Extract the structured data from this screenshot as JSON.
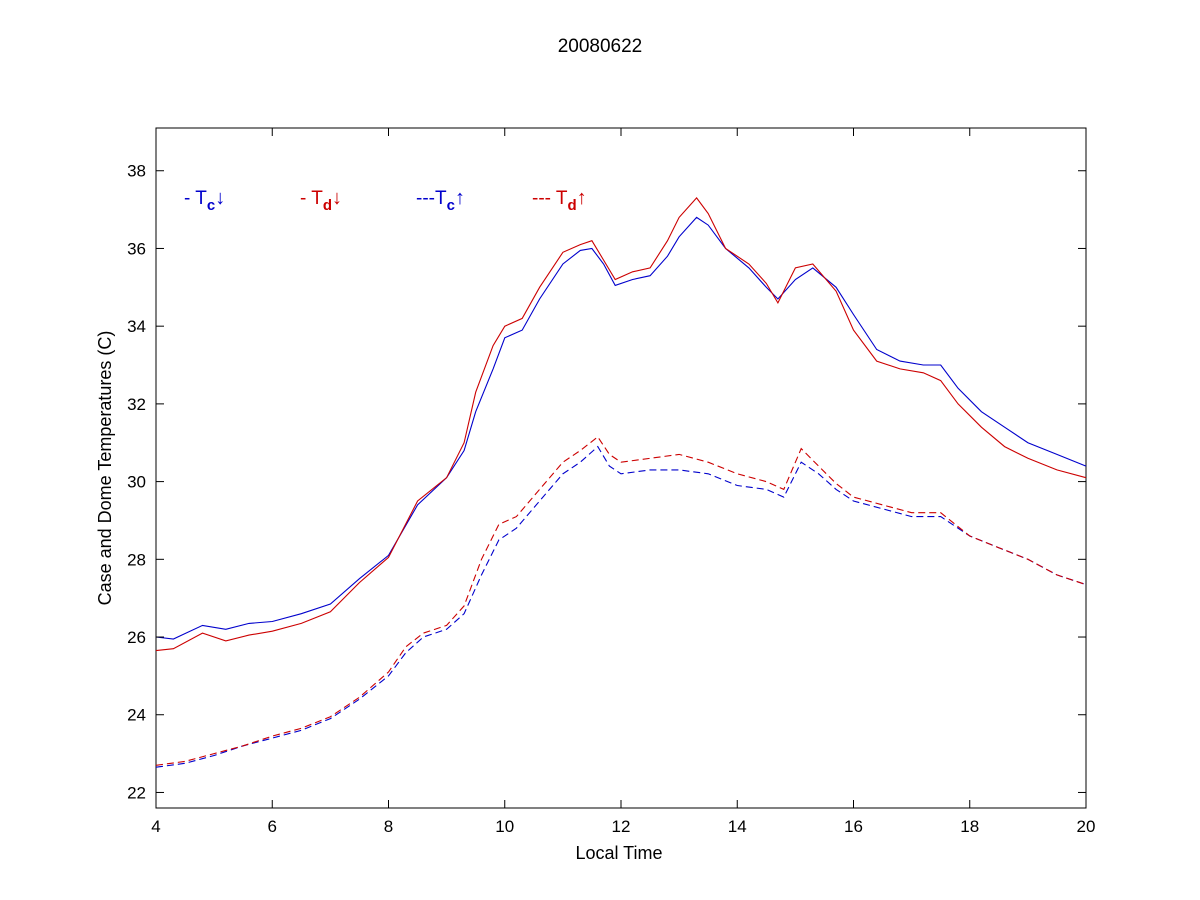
{
  "chart_data": {
    "type": "line",
    "title": "20080622",
    "xlabel": "Local Time",
    "ylabel": "Case and Dome Temperatures (C)",
    "xlim": [
      4,
      20
    ],
    "ylim": [
      21.6,
      39.1
    ],
    "xticks": [
      4,
      6,
      8,
      10,
      12,
      14,
      16,
      18,
      20
    ],
    "yticks": [
      22,
      24,
      26,
      28,
      30,
      32,
      34,
      36,
      38
    ],
    "grid": false,
    "legend": [
      {
        "prefix": "- T",
        "sub": "c",
        "arrow": "↓",
        "color": "#0000cc"
      },
      {
        "prefix": "- T",
        "sub": "d",
        "arrow": "↓",
        "color": "#cc0000"
      },
      {
        "prefix": "---T",
        "sub": "c",
        "arrow": "↑",
        "color": "#0000cc"
      },
      {
        "prefix": "--- T",
        "sub": "d",
        "arrow": "↑",
        "color": "#cc0000"
      }
    ],
    "series": [
      {
        "color": "#0000cc",
        "style": "solid",
        "points": [
          [
            4.0,
            26.0
          ],
          [
            4.3,
            25.95
          ],
          [
            4.8,
            26.3
          ],
          [
            5.2,
            26.2
          ],
          [
            5.6,
            26.35
          ],
          [
            6.0,
            26.4
          ],
          [
            6.5,
            26.6
          ],
          [
            7.0,
            26.85
          ],
          [
            7.5,
            27.5
          ],
          [
            8.0,
            28.1
          ],
          [
            8.5,
            29.4
          ],
          [
            9.0,
            30.1
          ],
          [
            9.3,
            30.8
          ],
          [
            9.5,
            31.8
          ],
          [
            9.8,
            32.9
          ],
          [
            10.0,
            33.7
          ],
          [
            10.3,
            33.9
          ],
          [
            10.6,
            34.7
          ],
          [
            11.0,
            35.6
          ],
          [
            11.3,
            35.95
          ],
          [
            11.5,
            36.0
          ],
          [
            11.7,
            35.6
          ],
          [
            11.9,
            35.05
          ],
          [
            12.2,
            35.2
          ],
          [
            12.5,
            35.3
          ],
          [
            12.8,
            35.8
          ],
          [
            13.0,
            36.3
          ],
          [
            13.3,
            36.8
          ],
          [
            13.5,
            36.6
          ],
          [
            13.8,
            36.0
          ],
          [
            14.2,
            35.5
          ],
          [
            14.5,
            35.0
          ],
          [
            14.7,
            34.7
          ],
          [
            15.0,
            35.2
          ],
          [
            15.3,
            35.5
          ],
          [
            15.7,
            35.0
          ],
          [
            16.0,
            34.3
          ],
          [
            16.4,
            33.4
          ],
          [
            16.8,
            33.1
          ],
          [
            17.2,
            33.0
          ],
          [
            17.5,
            33.0
          ],
          [
            17.8,
            32.4
          ],
          [
            18.2,
            31.8
          ],
          [
            18.6,
            31.4
          ],
          [
            19.0,
            31.0
          ],
          [
            19.5,
            30.7
          ],
          [
            20.0,
            30.4
          ]
        ]
      },
      {
        "color": "#cc0000",
        "style": "solid",
        "points": [
          [
            4.0,
            25.65
          ],
          [
            4.3,
            25.7
          ],
          [
            4.8,
            26.1
          ],
          [
            5.2,
            25.9
          ],
          [
            5.6,
            26.05
          ],
          [
            6.0,
            26.15
          ],
          [
            6.5,
            26.35
          ],
          [
            7.0,
            26.65
          ],
          [
            7.5,
            27.4
          ],
          [
            8.0,
            28.05
          ],
          [
            8.5,
            29.5
          ],
          [
            9.0,
            30.1
          ],
          [
            9.3,
            31.0
          ],
          [
            9.5,
            32.3
          ],
          [
            9.8,
            33.5
          ],
          [
            10.0,
            34.0
          ],
          [
            10.3,
            34.2
          ],
          [
            10.6,
            35.0
          ],
          [
            11.0,
            35.9
          ],
          [
            11.3,
            36.1
          ],
          [
            11.5,
            36.2
          ],
          [
            11.7,
            35.7
          ],
          [
            11.9,
            35.2
          ],
          [
            12.2,
            35.4
          ],
          [
            12.5,
            35.5
          ],
          [
            12.8,
            36.2
          ],
          [
            13.0,
            36.8
          ],
          [
            13.3,
            37.3
          ],
          [
            13.5,
            36.9
          ],
          [
            13.8,
            36.0
          ],
          [
            14.2,
            35.6
          ],
          [
            14.5,
            35.1
          ],
          [
            14.7,
            34.6
          ],
          [
            15.0,
            35.5
          ],
          [
            15.3,
            35.6
          ],
          [
            15.7,
            34.9
          ],
          [
            16.0,
            33.9
          ],
          [
            16.4,
            33.1
          ],
          [
            16.8,
            32.9
          ],
          [
            17.2,
            32.8
          ],
          [
            17.5,
            32.6
          ],
          [
            17.8,
            32.0
          ],
          [
            18.2,
            31.4
          ],
          [
            18.6,
            30.9
          ],
          [
            19.0,
            30.6
          ],
          [
            19.5,
            30.3
          ],
          [
            20.0,
            30.1
          ]
        ]
      },
      {
        "color": "#0000cc",
        "style": "dashed",
        "points": [
          [
            4.0,
            22.65
          ],
          [
            4.5,
            22.75
          ],
          [
            5.0,
            22.95
          ],
          [
            5.5,
            23.2
          ],
          [
            6.0,
            23.4
          ],
          [
            6.5,
            23.6
          ],
          [
            7.0,
            23.9
          ],
          [
            7.5,
            24.4
          ],
          [
            8.0,
            25.0
          ],
          [
            8.3,
            25.6
          ],
          [
            8.6,
            26.0
          ],
          [
            9.0,
            26.2
          ],
          [
            9.3,
            26.6
          ],
          [
            9.6,
            27.6
          ],
          [
            9.9,
            28.5
          ],
          [
            10.2,
            28.8
          ],
          [
            10.6,
            29.5
          ],
          [
            11.0,
            30.2
          ],
          [
            11.3,
            30.5
          ],
          [
            11.6,
            30.9
          ],
          [
            11.8,
            30.4
          ],
          [
            12.0,
            30.2
          ],
          [
            12.5,
            30.3
          ],
          [
            13.0,
            30.3
          ],
          [
            13.5,
            30.2
          ],
          [
            14.0,
            29.9
          ],
          [
            14.5,
            29.8
          ],
          [
            14.8,
            29.6
          ],
          [
            15.1,
            30.5
          ],
          [
            15.4,
            30.2
          ],
          [
            15.7,
            29.8
          ],
          [
            16.0,
            29.5
          ],
          [
            16.5,
            29.3
          ],
          [
            17.0,
            29.1
          ],
          [
            17.5,
            29.1
          ],
          [
            18.0,
            28.6
          ],
          [
            18.5,
            28.3
          ],
          [
            19.0,
            28.0
          ],
          [
            19.5,
            27.6
          ],
          [
            20.0,
            27.35
          ]
        ]
      },
      {
        "color": "#cc0000",
        "style": "dashed",
        "points": [
          [
            4.0,
            22.7
          ],
          [
            4.5,
            22.8
          ],
          [
            5.0,
            23.0
          ],
          [
            5.5,
            23.2
          ],
          [
            6.0,
            23.45
          ],
          [
            6.5,
            23.65
          ],
          [
            7.0,
            23.95
          ],
          [
            7.5,
            24.45
          ],
          [
            8.0,
            25.1
          ],
          [
            8.3,
            25.75
          ],
          [
            8.6,
            26.1
          ],
          [
            9.0,
            26.3
          ],
          [
            9.3,
            26.8
          ],
          [
            9.6,
            28.0
          ],
          [
            9.9,
            28.9
          ],
          [
            10.2,
            29.1
          ],
          [
            10.6,
            29.8
          ],
          [
            11.0,
            30.5
          ],
          [
            11.3,
            30.8
          ],
          [
            11.6,
            31.15
          ],
          [
            11.8,
            30.7
          ],
          [
            12.0,
            30.5
          ],
          [
            12.5,
            30.6
          ],
          [
            13.0,
            30.7
          ],
          [
            13.5,
            30.5
          ],
          [
            14.0,
            30.2
          ],
          [
            14.5,
            30.0
          ],
          [
            14.8,
            29.8
          ],
          [
            15.1,
            30.85
          ],
          [
            15.4,
            30.4
          ],
          [
            15.7,
            29.95
          ],
          [
            16.0,
            29.6
          ],
          [
            16.5,
            29.4
          ],
          [
            17.0,
            29.2
          ],
          [
            17.5,
            29.2
          ],
          [
            18.0,
            28.6
          ],
          [
            18.5,
            28.3
          ],
          [
            19.0,
            28.0
          ],
          [
            19.5,
            27.6
          ],
          [
            20.0,
            27.35
          ]
        ]
      }
    ]
  }
}
